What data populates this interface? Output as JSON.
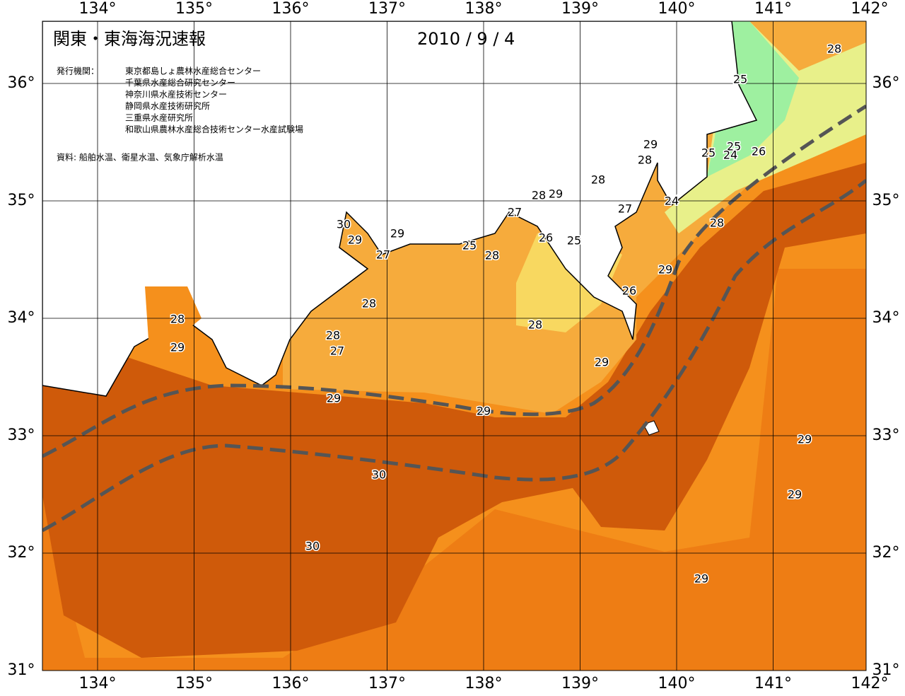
{
  "header": {
    "title": "関東・東海海況速報",
    "date": "2010 / 9 / 4"
  },
  "agencies": {
    "label": "発行機関：",
    "items": [
      "東京都島しょ農林水産総合センター",
      "千葉県水産総合研究センター",
      "神奈川県水産技術センター",
      "静岡県水産技術研究所",
      "三重県水産研究所",
      "和歌山県農林水産総合技術センター水産試験場"
    ]
  },
  "source": "資料: 船舶水温、衛星水温、気象庁解析水温",
  "lon_ticks": [
    {
      "value": 134,
      "label": "134°"
    },
    {
      "value": 135,
      "label": "135°"
    },
    {
      "value": 136,
      "label": "136°"
    },
    {
      "value": 137,
      "label": "137°"
    },
    {
      "value": 138,
      "label": "138°"
    },
    {
      "value": 139,
      "label": "139°"
    },
    {
      "value": 140,
      "label": "140°"
    },
    {
      "value": 141,
      "label": "141°"
    },
    {
      "value": 142,
      "label": "142°"
    }
  ],
  "lat_ticks": [
    {
      "value": 31,
      "label": "31°"
    },
    {
      "value": 32,
      "label": "32°"
    },
    {
      "value": 33,
      "label": "33°"
    },
    {
      "value": 34,
      "label": "34°"
    },
    {
      "value": 35,
      "label": "35°"
    },
    {
      "value": 36,
      "label": "36°"
    }
  ],
  "contour_labels": [
    28,
    25,
    29,
    28,
    25,
    25,
    24,
    26,
    28,
    28,
    29,
    27,
    24,
    27,
    28,
    30,
    29,
    29,
    27,
    26,
    25,
    25,
    28,
    29,
    26,
    28,
    28,
    28,
    29,
    28,
    27,
    29,
    29,
    29,
    29,
    30,
    29,
    30,
    29
  ]
}
